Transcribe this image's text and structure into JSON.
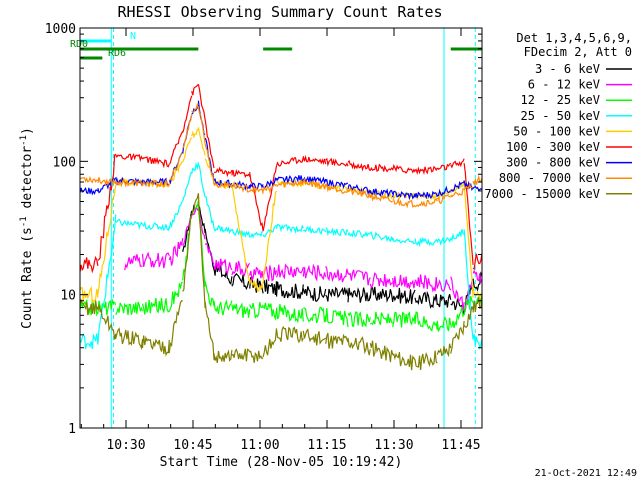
{
  "chart_data": {
    "type": "line",
    "title": "RHESSI Observing Summary Count Rates",
    "xlabel": "Start Time (28-Nov-05 10:19:42)",
    "ylabel": "Count Rate (s⁻¹ detector⁻¹)",
    "ylabel_parts": {
      "main": "Count Rate (s",
      "sup1": "-1",
      "mid": " detector",
      "sup2": "-1",
      "end": ")"
    },
    "x_unit": "minutes after 10:19:42",
    "xlim": [
      0,
      90
    ],
    "ylim": [
      1,
      1000
    ],
    "yscale": "log",
    "x_ticks": [
      {
        "value": 10.3,
        "label": "10:30"
      },
      {
        "value": 25.3,
        "label": "10:45"
      },
      {
        "value": 40.3,
        "label": "11:00"
      },
      {
        "value": 55.3,
        "label": "11:15"
      },
      {
        "value": 70.3,
        "label": "11:30"
      },
      {
        "value": 85.3,
        "label": "11:45"
      }
    ],
    "y_ticks": [
      {
        "value": 1,
        "label": "1"
      },
      {
        "value": 10,
        "label": "10"
      },
      {
        "value": 100,
        "label": "100"
      },
      {
        "value": 1000,
        "label": "1000"
      }
    ],
    "legend_header": [
      "Det 1,3,4,5,6,9,",
      "FDecim 2, Att 0"
    ],
    "legend_position": "right",
    "footer_date": "21-Oct-2021 12:49",
    "markers": [
      {
        "label": "N",
        "x": [
          0,
          7
        ]
      },
      {
        "label": "RD0",
        "x": [
          0,
          26.5,
          41,
          47.5,
          83,
          90
        ]
      },
      {
        "label": "RD6",
        "x": [
          0,
          5
        ]
      }
    ],
    "vertical_lines": [
      7,
      7.5,
      81.5,
      88.5
    ],
    "series": [
      {
        "name": "3 - 6 keV",
        "color": "#000000",
        "x": [
          0,
          8,
          14,
          20,
          23,
          25,
          26.5,
          28,
          30,
          34,
          38,
          41,
          44,
          50,
          55,
          60,
          65,
          70,
          75,
          80,
          83,
          86,
          88,
          90
        ],
        "y": [
          null,
          null,
          null,
          null,
          20,
          42,
          48,
          30,
          16,
          13,
          12,
          11.5,
          11,
          10.5,
          10,
          10,
          10,
          10,
          9.5,
          9,
          9,
          8,
          12,
          13
        ]
      },
      {
        "name": "6 - 12 keV",
        "color": "#ff00ff",
        "x": [
          0,
          8,
          10,
          14,
          20,
          23,
          25,
          26.5,
          28,
          30,
          34,
          38,
          41,
          44,
          50,
          55,
          60,
          65,
          70,
          75,
          80,
          83,
          86,
          88,
          90
        ],
        "y": [
          null,
          null,
          17,
          18,
          18,
          24,
          40,
          45,
          25,
          17,
          16,
          15,
          14,
          15,
          15,
          14.5,
          14,
          13,
          13,
          12.5,
          12,
          12,
          8,
          13,
          14
        ]
      },
      {
        "name": "12 - 25 keV",
        "color": "#00ff00",
        "x": [
          0,
          4,
          8,
          14,
          20,
          23,
          25,
          26.5,
          28,
          30,
          34,
          38,
          41,
          44,
          50,
          55,
          60,
          65,
          70,
          75,
          80,
          83,
          86,
          88,
          90
        ],
        "y": [
          8,
          8,
          8,
          8,
          8.5,
          12,
          40,
          48,
          12,
          8,
          8,
          7.5,
          8,
          7.5,
          7,
          7,
          6.5,
          6.5,
          6.5,
          6.5,
          6,
          6,
          8,
          9,
          10
        ]
      },
      {
        "name": "25 - 50 keV",
        "color": "#00ffff",
        "x": [
          0,
          4,
          8,
          14,
          20,
          23,
          25,
          26.5,
          28,
          30,
          34,
          38,
          41,
          44,
          50,
          55,
          60,
          65,
          70,
          75,
          80,
          83,
          86,
          88,
          90
        ],
        "y": [
          4.5,
          4.5,
          35,
          33,
          32,
          50,
          85,
          95,
          55,
          32,
          30,
          28,
          28,
          32,
          31,
          30,
          29,
          28,
          26,
          25,
          25,
          26,
          30,
          4.5,
          4.5
        ]
      },
      {
        "name": "50 - 100 keV",
        "color": "#ffcc00",
        "x": [
          0,
          4,
          8,
          14,
          20,
          23,
          25,
          26.5,
          28,
          30,
          34,
          38,
          41,
          44,
          50,
          55,
          60,
          65,
          70,
          75,
          80,
          83,
          86,
          88,
          90
        ],
        "y": [
          10,
          10,
          70,
          68,
          68,
          100,
          155,
          170,
          110,
          70,
          65,
          12,
          12,
          68,
          68,
          65,
          62,
          58,
          55,
          55,
          55,
          60,
          68,
          10,
          11
        ]
      },
      {
        "name": "100 - 300 keV",
        "color": "#ff0000",
        "x": [
          0,
          4,
          8,
          14,
          20,
          23,
          25,
          26.5,
          28,
          30,
          34,
          38,
          41,
          44,
          50,
          55,
          60,
          65,
          70,
          75,
          80,
          83,
          86,
          88,
          90
        ],
        "y": [
          17,
          17,
          110,
          105,
          95,
          170,
          320,
          380,
          200,
          85,
          82,
          80,
          30,
          95,
          105,
          100,
          95,
          90,
          88,
          85,
          88,
          92,
          100,
          17,
          20
        ]
      },
      {
        "name": "300 - 800 keV",
        "color": "#0000ff",
        "x": [
          0,
          4,
          8,
          14,
          20,
          23,
          25,
          26.5,
          28,
          30,
          34,
          38,
          41,
          44,
          50,
          55,
          60,
          65,
          70,
          75,
          80,
          83,
          86,
          88,
          90
        ],
        "y": [
          60,
          60,
          72,
          70,
          70,
          120,
          230,
          270,
          150,
          70,
          68,
          65,
          65,
          72,
          75,
          70,
          65,
          60,
          57,
          55,
          57,
          62,
          68,
          62,
          65
        ]
      },
      {
        "name": "800 - 7000 keV",
        "color": "#ff8800",
        "x": [
          0,
          4,
          8,
          14,
          20,
          23,
          25,
          26.5,
          28,
          30,
          34,
          38,
          41,
          44,
          50,
          55,
          60,
          65,
          70,
          75,
          80,
          83,
          86,
          88,
          90
        ],
        "y": [
          75,
          72,
          70,
          68,
          68,
          120,
          230,
          260,
          140,
          68,
          66,
          62,
          60,
          66,
          70,
          65,
          60,
          55,
          50,
          48,
          50,
          55,
          60,
          68,
          75
        ]
      },
      {
        "name": "7000 - 15000 keV",
        "color": "#808000",
        "x": [
          0,
          4,
          8,
          14,
          20,
          23,
          25,
          26.5,
          28,
          30,
          34,
          38,
          41,
          44,
          50,
          55,
          60,
          65,
          70,
          75,
          80,
          83,
          86,
          88,
          90
        ],
        "y": [
          8,
          8,
          5,
          4.5,
          4,
          10,
          40,
          55,
          8,
          3.5,
          3.5,
          3.5,
          3.5,
          5,
          5,
          4.5,
          4.5,
          4,
          3.5,
          3,
          3.5,
          4,
          6,
          8,
          9
        ]
      }
    ]
  }
}
